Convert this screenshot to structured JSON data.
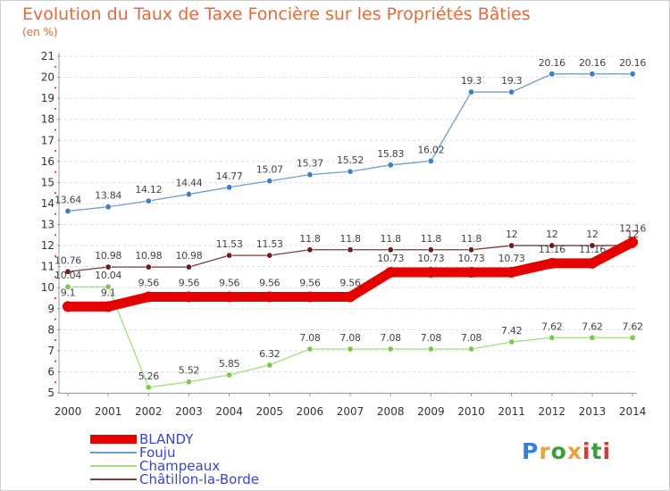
{
  "title": "Evolution du Taux de Taxe Foncière sur les Propriétés Bâties",
  "unit_label": "(en %)",
  "logo": {
    "text": "Proxiti",
    "letter_colors": [
      "#3a7fd5",
      "#e8a33b",
      "#3a9f3a",
      "#e8a33b",
      "#d03c3c",
      "#3a9f3a",
      "#d03c3c"
    ]
  },
  "chart_data": {
    "type": "line",
    "categories": [
      "2000",
      "2001",
      "2002",
      "2003",
      "2004",
      "2005",
      "2006",
      "2007",
      "2008",
      "2009",
      "2010",
      "2011",
      "2012",
      "2013",
      "2014"
    ],
    "ylim": [
      5,
      21
    ],
    "yticks": [
      5,
      6,
      7,
      8,
      9,
      10,
      11,
      12,
      13,
      14,
      15,
      16,
      17,
      18,
      19,
      20,
      21
    ],
    "grid": "horizontal",
    "legend_position": "bottom-left",
    "series": [
      {
        "name": "BLANDY",
        "color": "#e60000",
        "emphasis": true,
        "values": [
          9.1,
          9.1,
          9.56,
          9.56,
          9.56,
          9.56,
          9.56,
          9.56,
          10.73,
          10.73,
          10.73,
          10.73,
          11.16,
          11.16,
          12.16
        ],
        "labels": [
          "9.1",
          "9.1",
          "9.56",
          "9.56",
          "9.56",
          "9.56",
          "9.56",
          "9.56",
          "10.73",
          "10.73",
          "10.73",
          "10.73",
          "11.16",
          "11.16",
          "12.16"
        ]
      },
      {
        "name": "Fouju",
        "color": "#6a9fd4",
        "point_color": "#3d7fc2",
        "values": [
          13.64,
          13.84,
          14.12,
          14.44,
          14.77,
          15.07,
          15.37,
          15.52,
          15.83,
          16.02,
          19.3,
          19.3,
          20.16,
          20.16,
          20.16
        ],
        "labels": [
          "13.64",
          "13.84",
          "14.12",
          "14.44",
          "14.77",
          "15.07",
          "15.37",
          "15.52",
          "15.83",
          "16.02",
          "19.3",
          "19.3",
          "20.16",
          "20.16",
          "20.16"
        ]
      },
      {
        "name": "Champeaux",
        "color": "#a4dc7c",
        "point_color": "#7fc64e",
        "values": [
          10.04,
          10.04,
          5.26,
          5.52,
          5.85,
          6.32,
          7.08,
          7.08,
          7.08,
          7.08,
          7.08,
          7.42,
          7.62,
          7.62,
          7.62
        ],
        "labels": [
          "10.04",
          "10.04",
          "5.26",
          "5.52",
          "5.85",
          "6.32",
          "7.08",
          "7.08",
          "7.08",
          "7.08",
          "7.08",
          "7.42",
          "7.62",
          "7.62",
          "7.62"
        ]
      },
      {
        "name": "Châtillon-la-Borde",
        "color": "#7a3a3a",
        "point_color": "#6a1c24",
        "values": [
          10.76,
          10.98,
          10.98,
          10.98,
          11.53,
          11.53,
          11.8,
          11.8,
          11.8,
          11.8,
          11.8,
          12,
          12,
          12,
          12
        ],
        "labels": [
          "10.76",
          "10.98",
          "10.98",
          "10.98",
          "11.53",
          "11.53",
          "11.8",
          "11.8",
          "11.8",
          "11.8",
          "11.8",
          "12",
          "12",
          "12",
          "12"
        ]
      }
    ]
  }
}
